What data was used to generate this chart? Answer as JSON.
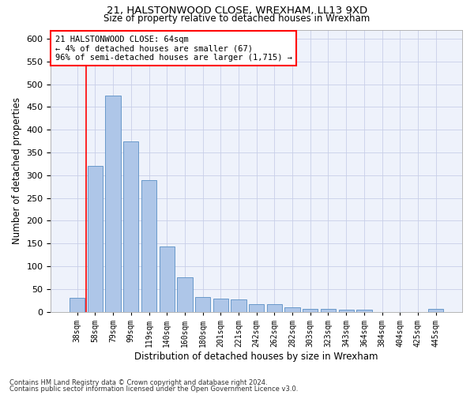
{
  "title1": "21, HALSTONWOOD CLOSE, WREXHAM, LL13 9XD",
  "title2": "Size of property relative to detached houses in Wrexham",
  "xlabel": "Distribution of detached houses by size in Wrexham",
  "ylabel": "Number of detached properties",
  "categories": [
    "38sqm",
    "58sqm",
    "79sqm",
    "99sqm",
    "119sqm",
    "140sqm",
    "160sqm",
    "180sqm",
    "201sqm",
    "221sqm",
    "242sqm",
    "262sqm",
    "282sqm",
    "303sqm",
    "323sqm",
    "343sqm",
    "364sqm",
    "384sqm",
    "404sqm",
    "425sqm",
    "445sqm"
  ],
  "values": [
    30,
    320,
    475,
    375,
    290,
    143,
    76,
    32,
    29,
    27,
    16,
    16,
    9,
    7,
    6,
    5,
    5,
    0,
    0,
    0,
    6
  ],
  "bar_color": "#aec6e8",
  "bar_edge_color": "#5a8fc4",
  "annotation_text": "21 HALSTONWOOD CLOSE: 64sqm\n← 4% of detached houses are smaller (67)\n96% of semi-detached houses are larger (1,715) →",
  "annotation_box_color": "white",
  "annotation_box_edge_color": "red",
  "vline_color": "red",
  "vline_x": 0.5,
  "ylim": [
    0,
    620
  ],
  "yticks": [
    0,
    50,
    100,
    150,
    200,
    250,
    300,
    350,
    400,
    450,
    500,
    550,
    600
  ],
  "footer1": "Contains HM Land Registry data © Crown copyright and database right 2024.",
  "footer2": "Contains public sector information licensed under the Open Government Licence v3.0.",
  "bg_color": "#eef2fb",
  "grid_color": "#c8cfe8"
}
